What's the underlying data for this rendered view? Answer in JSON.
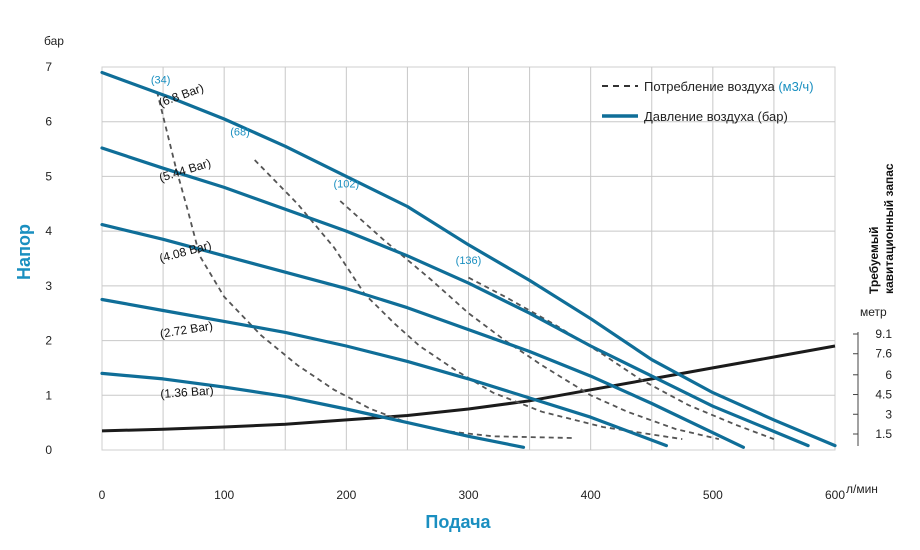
{
  "chart_data": {
    "type": "line",
    "xlabel": "Подача",
    "x_unit": "л/мин",
    "ylabel": "Напор",
    "y_unit": "бар",
    "xlim": [
      0,
      600
    ],
    "ylim": [
      0,
      7
    ],
    "x_ticks": [
      0,
      100,
      200,
      300,
      400,
      500,
      600
    ],
    "y_ticks": [
      0,
      1,
      2,
      3,
      4,
      5,
      6,
      7
    ],
    "accent_color": "#1a8fc0",
    "pressure_color": "#0f6e98",
    "air_color": "#555555",
    "npsh_color": "#1b1b1b",
    "legend": {
      "air_prefix": "Потребление воздуха",
      "air_unit": "(м3/ч)",
      "pressure": "Давление воздуха (бар)"
    },
    "pressure_series": [
      {
        "name": "(6.8 Bar)",
        "points": [
          [
            0,
            6.9
          ],
          [
            55,
            6.45
          ],
          [
            100,
            6.05
          ],
          [
            150,
            5.55
          ],
          [
            200,
            5.0
          ],
          [
            250,
            4.45
          ],
          [
            300,
            3.75
          ],
          [
            350,
            3.1
          ],
          [
            400,
            2.4
          ],
          [
            450,
            1.65
          ],
          [
            500,
            1.05
          ],
          [
            550,
            0.55
          ],
          [
            600,
            0.08
          ]
        ]
      },
      {
        "name": "(5.44 Bar)",
        "points": [
          [
            0,
            5.52
          ],
          [
            50,
            5.15
          ],
          [
            100,
            4.8
          ],
          [
            150,
            4.4
          ],
          [
            200,
            4.0
          ],
          [
            250,
            3.55
          ],
          [
            300,
            3.05
          ],
          [
            350,
            2.5
          ],
          [
            400,
            1.9
          ],
          [
            450,
            1.35
          ],
          [
            500,
            0.8
          ],
          [
            578,
            0.08
          ]
        ]
      },
      {
        "name": "(4.08 Bar)",
        "points": [
          [
            0,
            4.12
          ],
          [
            50,
            3.85
          ],
          [
            100,
            3.55
          ],
          [
            150,
            3.25
          ],
          [
            200,
            2.95
          ],
          [
            250,
            2.6
          ],
          [
            300,
            2.2
          ],
          [
            350,
            1.8
          ],
          [
            400,
            1.35
          ],
          [
            450,
            0.85
          ],
          [
            525,
            0.05
          ]
        ]
      },
      {
        "name": "(2.72 Bar)",
        "points": [
          [
            0,
            2.75
          ],
          [
            50,
            2.55
          ],
          [
            100,
            2.35
          ],
          [
            150,
            2.15
          ],
          [
            200,
            1.9
          ],
          [
            250,
            1.62
          ],
          [
            300,
            1.3
          ],
          [
            350,
            0.95
          ],
          [
            400,
            0.6
          ],
          [
            462,
            0.08
          ]
        ]
      },
      {
        "name": "(1.36 Bar)",
        "points": [
          [
            0,
            1.4
          ],
          [
            50,
            1.3
          ],
          [
            100,
            1.15
          ],
          [
            150,
            0.98
          ],
          [
            200,
            0.75
          ],
          [
            250,
            0.5
          ],
          [
            300,
            0.25
          ],
          [
            345,
            0.05
          ]
        ]
      }
    ],
    "air_series": [
      {
        "name": "(34)",
        "points": [
          [
            45,
            6.55
          ],
          [
            50,
            6.1
          ],
          [
            60,
            5.2
          ],
          [
            70,
            4.4
          ],
          [
            80,
            3.55
          ],
          [
            100,
            2.8
          ],
          [
            130,
            2.1
          ],
          [
            160,
            1.55
          ],
          [
            190,
            1.1
          ],
          [
            220,
            0.75
          ],
          [
            250,
            0.5
          ],
          [
            280,
            0.35
          ],
          [
            320,
            0.25
          ],
          [
            385,
            0.22
          ]
        ]
      },
      {
        "name": "(68)",
        "points": [
          [
            125,
            5.3
          ],
          [
            160,
            4.5
          ],
          [
            190,
            3.7
          ],
          [
            215,
            2.85
          ],
          [
            240,
            2.3
          ],
          [
            260,
            1.9
          ],
          [
            290,
            1.45
          ],
          [
            320,
            1.05
          ],
          [
            360,
            0.7
          ],
          [
            410,
            0.42
          ],
          [
            475,
            0.2
          ]
        ]
      },
      {
        "name": "(102)",
        "points": [
          [
            195,
            4.55
          ],
          [
            230,
            3.85
          ],
          [
            270,
            3.1
          ],
          [
            300,
            2.5
          ],
          [
            330,
            2.0
          ],
          [
            360,
            1.55
          ],
          [
            400,
            1.0
          ],
          [
            430,
            0.7
          ],
          [
            470,
            0.38
          ],
          [
            505,
            0.2
          ]
        ]
      },
      {
        "name": "(136)",
        "points": [
          [
            300,
            3.15
          ],
          [
            330,
            2.8
          ],
          [
            370,
            2.3
          ],
          [
            410,
            1.75
          ],
          [
            440,
            1.3
          ],
          [
            480,
            0.82
          ],
          [
            520,
            0.45
          ],
          [
            550,
            0.2
          ]
        ]
      }
    ],
    "air_label_positions": [
      [
        48,
        6.7
      ],
      [
        113,
        5.75
      ],
      [
        200,
        4.8
      ],
      [
        300,
        3.4
      ]
    ],
    "npsh": {
      "title_line1": "Требуемый",
      "title_line2": "кавитационный запас",
      "unit": "метр",
      "tick_labels": [
        "9.1",
        "7.6",
        "6",
        "4.5",
        "3",
        "1.5"
      ],
      "tick_values": [
        9.1,
        7.6,
        6.0,
        4.5,
        3.0,
        1.5
      ],
      "curve": [
        [
          0,
          0.35
        ],
        [
          50,
          0.38
        ],
        [
          100,
          0.42
        ],
        [
          150,
          0.47
        ],
        [
          200,
          0.55
        ],
        [
          250,
          0.63
        ],
        [
          300,
          0.75
        ],
        [
          350,
          0.9
        ],
        [
          400,
          1.1
        ],
        [
          450,
          1.3
        ],
        [
          500,
          1.5
        ],
        [
          550,
          1.7
        ],
        [
          600,
          1.9
        ]
      ]
    }
  }
}
